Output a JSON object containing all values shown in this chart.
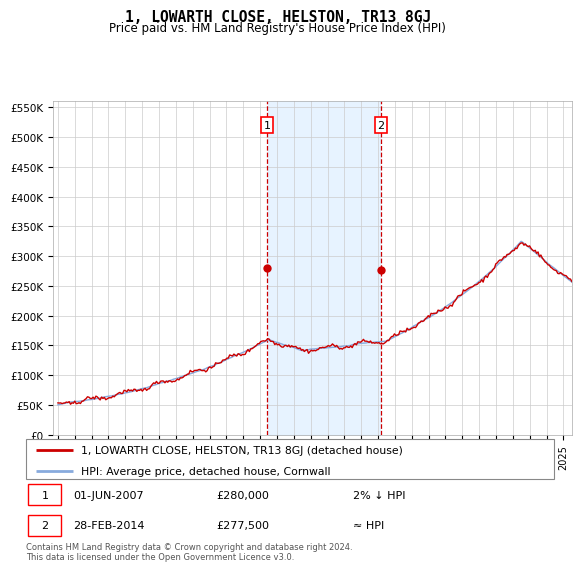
{
  "title": "1, LOWARTH CLOSE, HELSTON, TR13 8GJ",
  "subtitle": "Price paid vs. HM Land Registry's House Price Index (HPI)",
  "ylabel_ticks": [
    "£0",
    "£50K",
    "£100K",
    "£150K",
    "£200K",
    "£250K",
    "£300K",
    "£350K",
    "£400K",
    "£450K",
    "£500K",
    "£550K"
  ],
  "ytick_values": [
    0,
    50000,
    100000,
    150000,
    200000,
    250000,
    300000,
    350000,
    400000,
    450000,
    500000,
    550000
  ],
  "ylim": [
    0,
    560000
  ],
  "xlim_start": 1994.7,
  "xlim_end": 2025.5,
  "sale1_date": 2007.42,
  "sale1_price": 280000,
  "sale1_label": "1",
  "sale2_date": 2014.17,
  "sale2_price": 277500,
  "sale2_label": "2",
  "legend_line1": "1, LOWARTH CLOSE, HELSTON, TR13 8GJ (detached house)",
  "legend_line2": "HPI: Average price, detached house, Cornwall",
  "table_row1": [
    "1",
    "01-JUN-2007",
    "£280,000",
    "2% ↓ HPI"
  ],
  "table_row2": [
    "2",
    "28-FEB-2014",
    "£277,500",
    "≈ HPI"
  ],
  "footnote": "Contains HM Land Registry data © Crown copyright and database right 2024.\nThis data is licensed under the Open Government Licence v3.0.",
  "line_color_property": "#cc0000",
  "line_color_hpi": "#88aadd",
  "background_color": "#ffffff",
  "grid_color": "#cccccc",
  "shade_color": "#ddeeff",
  "dashed_line_color": "#cc0000"
}
